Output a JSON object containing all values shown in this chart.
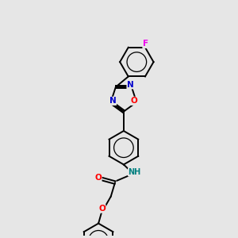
{
  "background_color": "#e6e6e6",
  "bond_color": "#000000",
  "atom_colors": {
    "O": "#ff0000",
    "N": "#0000cc",
    "F": "#ee00ee",
    "NH": "#008080",
    "C": "#000000"
  },
  "lw": 1.4
}
